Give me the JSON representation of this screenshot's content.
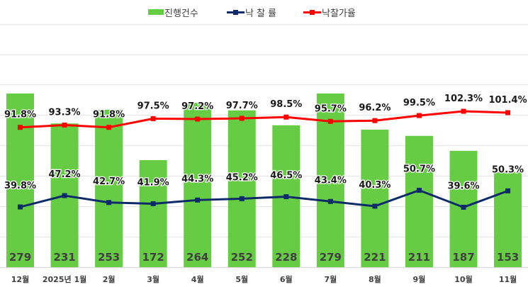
{
  "legend": {
    "bar_label": "진행건수",
    "rate_label": "낙 찰 률",
    "price_rate_label": "낙찰가율"
  },
  "colors": {
    "bar": "#66CC44",
    "rate_line": "#0D2B6B",
    "price_rate_line": "#FF0000",
    "grid": "#E6E6E6",
    "label_text": "#1A1A1A",
    "bar_value_text": "#404040",
    "axis_text": "#404040"
  },
  "chart_data": {
    "type": "bar+line",
    "title": "",
    "xlabel": "",
    "ylabel": "",
    "grid": true,
    "legend_position": "top",
    "categories": [
      "12월",
      "2025년 1월",
      "2월",
      "3월",
      "4월",
      "5월",
      "6월",
      "7월",
      "8월",
      "9월",
      "10월",
      "11월"
    ],
    "series": [
      {
        "name": "진행건수",
        "type": "bar",
        "axis": "primary",
        "values": [
          279,
          231,
          253,
          172,
          264,
          252,
          228,
          279,
          221,
          211,
          187,
          153
        ],
        "labels": [
          "279",
          "231",
          "253",
          "172",
          "264",
          "252",
          "228",
          "279",
          "221",
          "211",
          "187",
          "153"
        ]
      },
      {
        "name": "낙 찰 률",
        "type": "line",
        "axis": "secondary",
        "unit": "%",
        "values": [
          39.8,
          47.2,
          42.7,
          41.9,
          44.3,
          45.2,
          46.5,
          43.4,
          40.3,
          50.7,
          39.6,
          50.3
        ],
        "labels": [
          "39.8%",
          "47.2%",
          "42.7%",
          "41.9%",
          "44.3%",
          "45.2%",
          "46.5%",
          "43.4%",
          "40.3%",
          "50.7%",
          "39.6%",
          "50.3%"
        ]
      },
      {
        "name": "낙찰가율",
        "type": "line",
        "axis": "secondary",
        "unit": "%",
        "values": [
          91.8,
          93.3,
          91.8,
          97.5,
          97.2,
          97.7,
          98.5,
          95.7,
          96.2,
          99.5,
          102.3,
          101.4
        ],
        "labels": [
          "91.8%",
          "93.3%",
          "91.8%",
          "97.5%",
          "97.2%",
          "97.7%",
          "98.5%",
          "95.7%",
          "96.2%",
          "99.5%",
          "102.3%",
          "101.4%"
        ]
      }
    ],
    "primary_axis": {
      "visible": false,
      "approx_range": [
        0,
        390
      ]
    },
    "secondary_axis": {
      "visible": false,
      "approx_range": [
        0,
        159
      ]
    }
  }
}
